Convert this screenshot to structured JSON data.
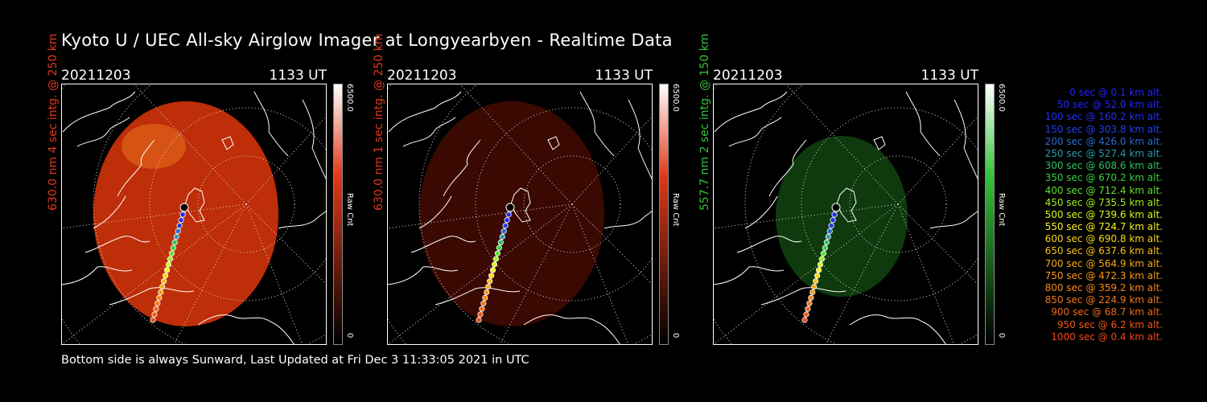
{
  "title": "Kyoto U / UEC All-sky Airglow Imager at Longyearbyen - Realtime Data",
  "footer": "Bottom side is always Sunward, Last Updated at Fri Dec  3 11:33:05 2021 in UTC",
  "panels": [
    {
      "date": "20211203",
      "time": "1133 UT",
      "side_label": "630.0 nm 4 sec intg. @ 250 km",
      "label_color": "#e03a1a",
      "cb_max": "6500.0",
      "cb_min": "0",
      "cb_unit": "Raw Cnt",
      "image_color": "#c8300a",
      "cb_color": "#e03a1a"
    },
    {
      "date": "20211203",
      "time": "1133 UT",
      "side_label": "630.0 nm 1 sec intg. @ 250 km",
      "label_color": "#e03a1a",
      "cb_max": "6500.0",
      "cb_min": "0",
      "cb_unit": "Raw Cnt",
      "image_color": "#3d0a02",
      "cb_color": "#e03a1a"
    },
    {
      "date": "20211203",
      "time": "1133 UT",
      "side_label": "557.7 nm 2 sec intg. @ 150 km",
      "label_color": "#34c23a",
      "cb_max": "6500.0",
      "cb_min": "0",
      "cb_unit": "Raw Cnt",
      "image_color": "#0f3d0f",
      "cb_color": "#34c23a"
    }
  ],
  "legend": [
    {
      "text": "0 sec @    0.1 km alt.",
      "color": "#2424ff"
    },
    {
      "text": "50 sec @   52.0 km alt.",
      "color": "#2424ff"
    },
    {
      "text": "100 sec @  160.2 km alt.",
      "color": "#2030f0"
    },
    {
      "text": "150 sec @  303.8 km alt.",
      "color": "#2040e8"
    },
    {
      "text": "200 sec @  426.0 km alt.",
      "color": "#2a6ad0"
    },
    {
      "text": "250 sec @  527.4 km alt.",
      "color": "#2a9ab0"
    },
    {
      "text": "300 sec @  608.6 km alt.",
      "color": "#30c060"
    },
    {
      "text": "350 sec @  670.2 km alt.",
      "color": "#38d040"
    },
    {
      "text": "400 sec @  712.4 km alt.",
      "color": "#60e030"
    },
    {
      "text": "450 sec @  735.5 km alt.",
      "color": "#a0f020"
    },
    {
      "text": "500 sec @  739.6 km alt.",
      "color": "#d8f818"
    },
    {
      "text": "550 sec @  724.7 km alt.",
      "color": "#f8f020"
    },
    {
      "text": "600 sec @  690.8 km alt.",
      "color": "#f8d818"
    },
    {
      "text": "650 sec @  637.6 km alt.",
      "color": "#f8c018"
    },
    {
      "text": "700 sec @  564.9 km alt.",
      "color": "#f8a818"
    },
    {
      "text": "750 sec @  472.3 km alt.",
      "color": "#f89818"
    },
    {
      "text": "800 sec @  359.2 km alt.",
      "color": "#f88818"
    },
    {
      "text": "850 sec @  224.9 km alt.",
      "color": "#f07818"
    },
    {
      "text": "900 sec @   68.7 km alt.",
      "color": "#f06818"
    },
    {
      "text": "950 sec @    6.2 km alt.",
      "color": "#f05818"
    },
    {
      "text": "1000 sec @    0.4 km alt.",
      "color": "#f04818"
    }
  ]
}
